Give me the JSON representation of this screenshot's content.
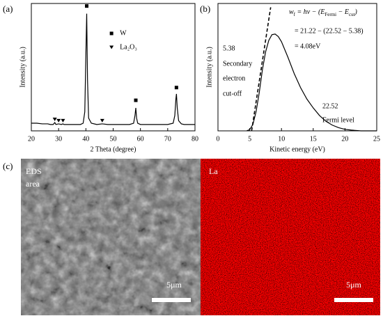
{
  "panel_labels": [
    "(a)",
    "(b)",
    "(c)"
  ],
  "chart_data": [
    {
      "type": "line",
      "xlabel": "2 Theta (degree)",
      "ylabel": "Intensity (a.u.)",
      "xlim": [
        20,
        80
      ],
      "xticks": [
        20,
        30,
        40,
        50,
        60,
        70,
        80
      ],
      "ylim": [
        0,
        100
      ],
      "legend": "upper right",
      "series": [
        {
          "color": "#000000",
          "x": [
            20,
            22,
            24,
            26,
            27,
            28,
            28.6,
            29,
            30,
            31,
            31.6,
            32,
            34,
            36,
            38,
            39,
            39.6,
            40,
            40.3,
            40.6,
            41,
            42,
            44,
            46,
            48,
            50,
            52,
            54,
            56,
            57.5,
            58,
            58.3,
            58.6,
            59,
            60,
            62,
            64,
            66,
            68,
            70,
            72,
            72.6,
            73,
            73.2,
            73.5,
            74,
            75,
            76,
            78,
            80
          ],
          "values": [
            6,
            6,
            5.5,
            5.5,
            5,
            5,
            6.5,
            5,
            5.5,
            5,
            5.5,
            5,
            5,
            5,
            5,
            6,
            15,
            60,
            92,
            40,
            10,
            6,
            5,
            5.5,
            5,
            5,
            5,
            5,
            5,
            6,
            12,
            18,
            10,
            6,
            5,
            5,
            5,
            5,
            5,
            5,
            6,
            12,
            25,
            29,
            18,
            8,
            5.5,
            5,
            5,
            5
          ]
        },
        {
          "name": "W",
          "marker": "square",
          "color": "#000000",
          "x": [
            40.3,
            58.3,
            73.2
          ],
          "values": [
            98,
            24,
            34
          ]
        },
        {
          "name": "La₂O₃",
          "marker": "triangle",
          "color": "#000000",
          "x": [
            28.6,
            30.0,
            31.6,
            46.0
          ],
          "values": [
            9,
            8,
            8,
            8
          ]
        }
      ]
    },
    {
      "type": "line",
      "xlabel": "Kinetic energy (eV)",
      "ylabel": "Intensity (a.u.)",
      "xlim": [
        0,
        25
      ],
      "xticks": [
        0,
        5,
        10,
        15,
        20,
        25
      ],
      "ylim": [
        0,
        100
      ],
      "formula": [
        "w",
        "f",
        " = hν − (E",
        "Fermi",
        " − E",
        "cut",
        ")"
      ],
      "annotations": [
        "= 21.22 − (22.52 − 5.38)",
        "= 4.08eV",
        "5.38",
        "Secondary",
        "electron",
        "cut-off",
        "22.52",
        "Fermi level"
      ],
      "series": [
        {
          "color": "#000000",
          "x": [
            4.5,
            5,
            5.5,
            6,
            6.5,
            7,
            7.5,
            8,
            8.5,
            9,
            9.5,
            10,
            11,
            12,
            13,
            14,
            15,
            16,
            17,
            18,
            19,
            20,
            21,
            22,
            22.5,
            23,
            24,
            25
          ],
          "values": [
            0,
            1,
            5,
            15,
            30,
            48,
            62,
            71,
            75.5,
            76,
            74,
            70,
            58,
            45,
            34,
            25,
            18,
            12,
            7.5,
            4.5,
            2.5,
            1.2,
            0.6,
            0.2,
            0,
            0,
            0,
            0
          ]
        },
        {
          "color": "#000000",
          "dashed": true,
          "x": [
            5.3,
            8.3
          ],
          "values": [
            0,
            97
          ]
        }
      ]
    }
  ],
  "images": [
    {
      "label": [
        "EDS",
        "area"
      ],
      "scale_bar": "5μm"
    },
    {
      "label": [
        "La"
      ],
      "scale_bar": "5μm"
    }
  ]
}
